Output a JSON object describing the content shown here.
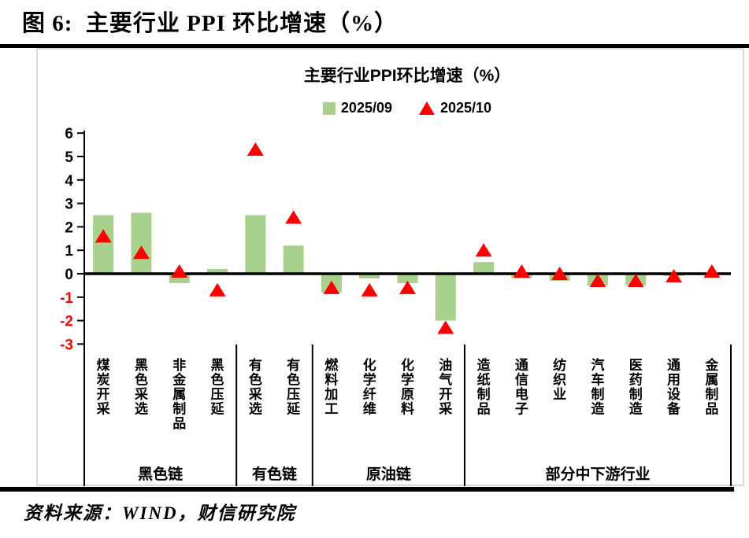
{
  "page": {
    "figure_title": "图 6:  主要行业 PPI 环比增速（%）",
    "source": "资料来源：WIND，财信研究院"
  },
  "chart": {
    "title": "主要行业PPI环比增速（%）",
    "legend": [
      {
        "label": "2025/09",
        "marker": "square",
        "color": "#a9d18e"
      },
      {
        "label": "2025/10",
        "marker": "triangle",
        "color": "#ff0000"
      }
    ]
  },
  "chart_data": {
    "type": "bar",
    "title": "主要行业PPI环比增速（%）",
    "xlabel": "",
    "ylabel": "",
    "ylim": [
      -3,
      6
    ],
    "yticks": [
      6,
      5,
      4,
      3,
      2,
      1,
      0,
      -1,
      -2,
      -3
    ],
    "grid": false,
    "legend_position": "top",
    "negative_tick_color": "#ff0000",
    "positive_tick_color": "#000000",
    "categories": [
      "煤炭开采",
      "黑色采选",
      "非金属制品",
      "黑色压延",
      "有色采选",
      "有色压延",
      "燃料加工",
      "化学纤维",
      "化学原料",
      "油气开采",
      "造纸制品",
      "通信电子",
      "纺织业",
      "汽车制造",
      "医药制造",
      "通用设备",
      "金属制品"
    ],
    "groups": [
      {
        "label": "黑色链",
        "span": [
          0,
          3
        ]
      },
      {
        "label": "有色链",
        "span": [
          4,
          5
        ]
      },
      {
        "label": "原油链",
        "span": [
          6,
          9
        ]
      },
      {
        "label": "部分中下游行业",
        "span": [
          10,
          16
        ]
      }
    ],
    "series": [
      {
        "name": "2025/09",
        "type": "bar",
        "color": "#a9d18e",
        "values": [
          2.5,
          2.6,
          -0.4,
          0.2,
          2.5,
          1.2,
          -0.8,
          -0.2,
          -0.4,
          -2.0,
          0.5,
          -0.2,
          -0.3,
          -0.5,
          -0.5,
          -0.1,
          0.0
        ]
      },
      {
        "name": "2025/10",
        "type": "triangle-marker",
        "color": "#ff0000",
        "values": [
          1.6,
          0.9,
          0.1,
          -0.7,
          5.3,
          2.4,
          -0.6,
          -0.7,
          -0.6,
          -2.3,
          1.0,
          0.1,
          0.0,
          -0.3,
          -0.3,
          -0.1,
          0.1
        ]
      }
    ]
  }
}
